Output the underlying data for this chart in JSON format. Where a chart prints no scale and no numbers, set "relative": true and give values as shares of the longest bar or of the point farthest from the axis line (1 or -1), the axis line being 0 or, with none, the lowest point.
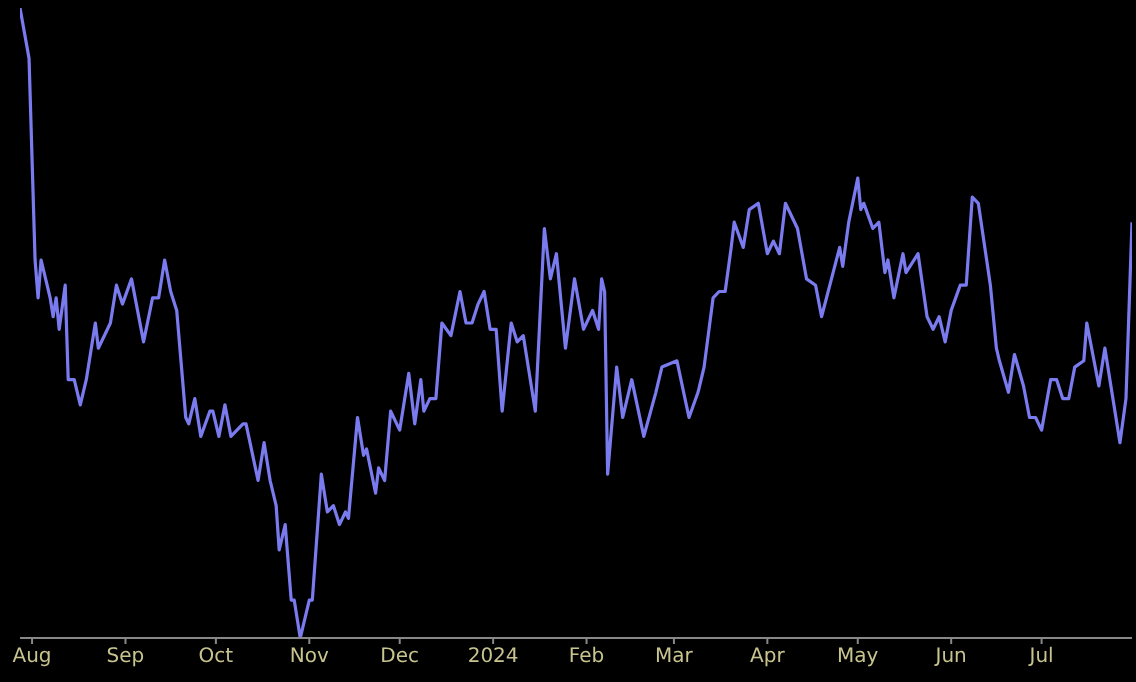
{
  "chart_data": {
    "type": "line",
    "relative": true,
    "x": [
      "2023-07-28",
      "2023-07-31",
      "2023-08-02",
      "2023-08-03",
      "2023-08-04",
      "2023-08-06",
      "2023-08-07",
      "2023-08-08",
      "2023-08-09",
      "2023-08-10",
      "2023-08-12",
      "2023-08-13",
      "2023-08-15",
      "2023-08-17",
      "2023-08-19",
      "2023-08-22",
      "2023-08-23",
      "2023-08-27",
      "2023-08-29",
      "2023-08-31",
      "2023-09-03",
      "2023-09-07",
      "2023-09-10",
      "2023-09-12",
      "2023-09-14",
      "2023-09-16",
      "2023-09-18",
      "2023-09-21",
      "2023-09-22",
      "2023-09-24",
      "2023-09-26",
      "2023-09-29",
      "2023-09-30",
      "2023-10-02",
      "2023-10-04",
      "2023-10-06",
      "2023-10-10",
      "2023-10-11",
      "2023-10-15",
      "2023-10-17",
      "2023-10-19",
      "2023-10-21",
      "2023-10-22",
      "2023-10-24",
      "2023-10-26",
      "2023-10-27",
      "2023-10-29",
      "2023-11-01",
      "2023-11-02",
      "2023-11-05",
      "2023-11-07",
      "2023-11-09",
      "2023-11-11",
      "2023-11-13",
      "2023-11-14",
      "2023-11-17",
      "2023-11-19",
      "2023-11-20",
      "2023-11-23",
      "2023-11-24",
      "2023-11-26",
      "2023-11-28",
      "2023-12-01",
      "2023-12-04",
      "2023-12-06",
      "2023-12-08",
      "2023-12-09",
      "2023-12-11",
      "2023-12-13",
      "2023-12-15",
      "2023-12-18",
      "2023-12-21",
      "2023-12-23",
      "2023-12-25",
      "2023-12-27",
      "2023-12-29",
      "2023-12-31",
      "2024-01-02",
      "2024-01-04",
      "2024-01-07",
      "2024-01-09",
      "2024-01-11",
      "2024-01-15",
      "2024-01-18",
      "2024-01-20",
      "2024-01-22",
      "2024-01-25",
      "2024-01-28",
      "2024-01-31",
      "2024-02-03",
      "2024-02-05",
      "2024-02-06",
      "2024-02-07",
      "2024-02-08",
      "2024-02-11",
      "2024-02-13",
      "2024-02-16",
      "2024-02-20",
      "2024-02-24",
      "2024-02-26",
      "2024-03-02",
      "2024-03-06",
      "2024-03-09",
      "2024-03-11",
      "2024-03-14",
      "2024-03-16",
      "2024-03-18",
      "2024-03-20",
      "2024-03-21",
      "2024-03-24",
      "2024-03-26",
      "2024-03-29",
      "2024-04-01",
      "2024-04-03",
      "2024-04-05",
      "2024-04-07",
      "2024-04-11",
      "2024-04-14",
      "2024-04-17",
      "2024-04-19",
      "2024-04-25",
      "2024-04-26",
      "2024-04-28",
      "2024-05-01",
      "2024-05-02",
      "2024-05-03",
      "2024-05-06",
      "2024-05-08",
      "2024-05-10",
      "2024-05-11",
      "2024-05-13",
      "2024-05-16",
      "2024-05-17",
      "2024-05-21",
      "2024-05-24",
      "2024-05-26",
      "2024-05-28",
      "2024-05-30",
      "2024-06-01",
      "2024-06-04",
      "2024-06-06",
      "2024-06-08",
      "2024-06-10",
      "2024-06-14",
      "2024-06-16",
      "2024-06-17",
      "2024-06-20",
      "2024-06-22",
      "2024-06-25",
      "2024-06-27",
      "2024-06-29",
      "2024-07-01",
      "2024-07-04",
      "2024-07-06",
      "2024-07-08",
      "2024-07-10",
      "2024-07-12",
      "2024-07-15",
      "2024-07-16",
      "2024-07-20",
      "2024-07-22",
      "2024-07-27",
      "2024-07-29",
      "2024-07-31"
    ],
    "series": [
      {
        "color": "#7b7bf0",
        "values": [
          1.0,
          0.92,
          0.6,
          0.54,
          0.6,
          0.56,
          0.54,
          0.51,
          0.54,
          0.49,
          0.56,
          0.41,
          0.41,
          0.37,
          0.41,
          0.5,
          0.46,
          0.5,
          0.56,
          0.53,
          0.57,
          0.47,
          0.54,
          0.54,
          0.6,
          0.55,
          0.52,
          0.35,
          0.34,
          0.38,
          0.32,
          0.36,
          0.36,
          0.32,
          0.37,
          0.32,
          0.34,
          0.34,
          0.25,
          0.31,
          0.25,
          0.21,
          0.14,
          0.18,
          0.06,
          0.06,
          0.0,
          0.06,
          0.06,
          0.26,
          0.2,
          0.21,
          0.18,
          0.2,
          0.19,
          0.35,
          0.29,
          0.3,
          0.23,
          0.27,
          0.25,
          0.36,
          0.33,
          0.42,
          0.34,
          0.41,
          0.36,
          0.38,
          0.38,
          0.5,
          0.48,
          0.55,
          0.5,
          0.5,
          0.53,
          0.55,
          0.49,
          0.49,
          0.36,
          0.5,
          0.47,
          0.48,
          0.36,
          0.65,
          0.57,
          0.61,
          0.46,
          0.57,
          0.49,
          0.52,
          0.49,
          0.57,
          0.55,
          0.26,
          0.43,
          0.35,
          0.41,
          0.32,
          0.39,
          0.43,
          0.44,
          0.35,
          0.39,
          0.43,
          0.54,
          0.55,
          0.55,
          0.62,
          0.66,
          0.62,
          0.68,
          0.69,
          0.61,
          0.63,
          0.61,
          0.69,
          0.65,
          0.57,
          0.56,
          0.51,
          0.62,
          0.59,
          0.66,
          0.73,
          0.68,
          0.69,
          0.65,
          0.66,
          0.58,
          0.6,
          0.54,
          0.61,
          0.58,
          0.61,
          0.51,
          0.49,
          0.51,
          0.47,
          0.52,
          0.56,
          0.56,
          0.7,
          0.69,
          0.56,
          0.46,
          0.44,
          0.39,
          0.45,
          0.4,
          0.35,
          0.35,
          0.33,
          0.41,
          0.41,
          0.38,
          0.38,
          0.43,
          0.44,
          0.5,
          0.4,
          0.46,
          0.31,
          0.38,
          0.66
        ]
      }
    ],
    "xlim": [
      "2023-07-28",
      "2024-07-31"
    ],
    "xticks": [
      {
        "value": "2023-08-01",
        "label": "Aug"
      },
      {
        "value": "2023-09-01",
        "label": "Sep"
      },
      {
        "value": "2023-10-01",
        "label": "Oct"
      },
      {
        "value": "2023-11-01",
        "label": "Nov"
      },
      {
        "value": "2023-12-01",
        "label": "Dec"
      },
      {
        "value": "2024-01-01",
        "label": "2024"
      },
      {
        "value": "2024-02-01",
        "label": "Feb"
      },
      {
        "value": "2024-03-01",
        "label": "Mar"
      },
      {
        "value": "2024-04-01",
        "label": "Apr"
      },
      {
        "value": "2024-05-01",
        "label": "May"
      },
      {
        "value": "2024-06-01",
        "label": "Jun"
      },
      {
        "value": "2024-07-01",
        "label": "Jul"
      }
    ]
  }
}
